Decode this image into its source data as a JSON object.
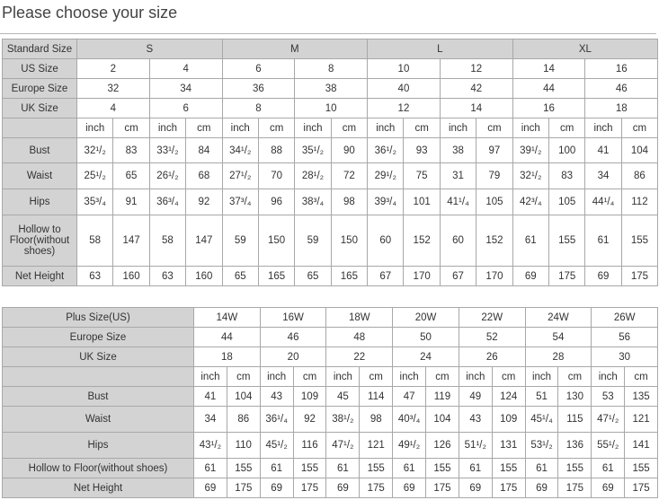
{
  "title": "Please choose your size",
  "table1": {
    "header": {
      "label": "Standard Size",
      "groups": [
        "S",
        "M",
        "L",
        "XL"
      ]
    },
    "size_rows": [
      {
        "label": "US Size",
        "values": [
          "2",
          "4",
          "6",
          "8",
          "10",
          "12",
          "14",
          "16"
        ]
      },
      {
        "label": "Europe Size",
        "values": [
          "32",
          "34",
          "36",
          "38",
          "40",
          "42",
          "44",
          "46"
        ]
      },
      {
        "label": "UK Size",
        "values": [
          "4",
          "6",
          "8",
          "10",
          "12",
          "14",
          "16",
          "18"
        ]
      }
    ],
    "units": [
      "inch",
      "cm"
    ],
    "measure_rows": [
      {
        "label": "Bust",
        "values": [
          "32¹/₂",
          "83",
          "33¹/₂",
          "84",
          "34¹/₂",
          "88",
          "35¹/₂",
          "90",
          "36¹/₂",
          "93",
          "38",
          "97",
          "39¹/₂",
          "100",
          "41",
          "104"
        ]
      },
      {
        "label": "Waist",
        "values": [
          "25¹/₂",
          "65",
          "26¹/₂",
          "68",
          "27¹/₂",
          "70",
          "28¹/₂",
          "72",
          "29¹/₂",
          "75",
          "31",
          "79",
          "32¹/₂",
          "83",
          "34",
          "86"
        ]
      },
      {
        "label": "Hips",
        "values": [
          "35³/₄",
          "91",
          "36³/₄",
          "92",
          "37³/₄",
          "96",
          "38³/₄",
          "98",
          "39³/₄",
          "101",
          "41¹/₄",
          "105",
          "42³/₄",
          "105",
          "44¹/₄",
          "112"
        ]
      },
      {
        "label": "Hollow to Floor(without shoes)",
        "values": [
          "58",
          "147",
          "58",
          "147",
          "59",
          "150",
          "59",
          "150",
          "60",
          "152",
          "60",
          "152",
          "61",
          "155",
          "61",
          "155"
        ]
      },
      {
        "label": "Net Height",
        "values": [
          "63",
          "160",
          "63",
          "160",
          "65",
          "165",
          "65",
          "165",
          "67",
          "170",
          "67",
          "170",
          "69",
          "175",
          "69",
          "175"
        ]
      }
    ]
  },
  "table2": {
    "size_rows": [
      {
        "label": "Plus Size(US)",
        "values": [
          "14W",
          "16W",
          "18W",
          "20W",
          "22W",
          "24W",
          "26W"
        ]
      },
      {
        "label": "Europe Size",
        "values": [
          "44",
          "46",
          "48",
          "50",
          "52",
          "54",
          "56"
        ]
      },
      {
        "label": "UK Size",
        "values": [
          "18",
          "20",
          "22",
          "24",
          "26",
          "28",
          "30"
        ]
      }
    ],
    "units": [
      "inch",
      "cm"
    ],
    "measure_rows": [
      {
        "label": "Bust",
        "values": [
          "41",
          "104",
          "43",
          "109",
          "45",
          "114",
          "47",
          "119",
          "49",
          "124",
          "51",
          "130",
          "53",
          "135"
        ]
      },
      {
        "label": "Waist",
        "values": [
          "34",
          "86",
          "36¹/₄",
          "92",
          "38¹/₂",
          "98",
          "40³/₄",
          "104",
          "43",
          "109",
          "45¹/₄",
          "115",
          "47¹/₂",
          "121"
        ]
      },
      {
        "label": "Hips",
        "values": [
          "43¹/₂",
          "110",
          "45¹/₂",
          "116",
          "47¹/₂",
          "121",
          "49¹/₂",
          "126",
          "51¹/₂",
          "131",
          "53¹/₂",
          "136",
          "55¹/₂",
          "141"
        ]
      },
      {
        "label": "Hollow to Floor(without shoes)",
        "values": [
          "61",
          "155",
          "61",
          "155",
          "61",
          "155",
          "61",
          "155",
          "61",
          "155",
          "61",
          "155",
          "61",
          "155"
        ]
      },
      {
        "label": "Net Height",
        "values": [
          "69",
          "175",
          "69",
          "175",
          "69",
          "175",
          "69",
          "175",
          "69",
          "175",
          "69",
          "175",
          "69",
          "175"
        ]
      }
    ]
  }
}
